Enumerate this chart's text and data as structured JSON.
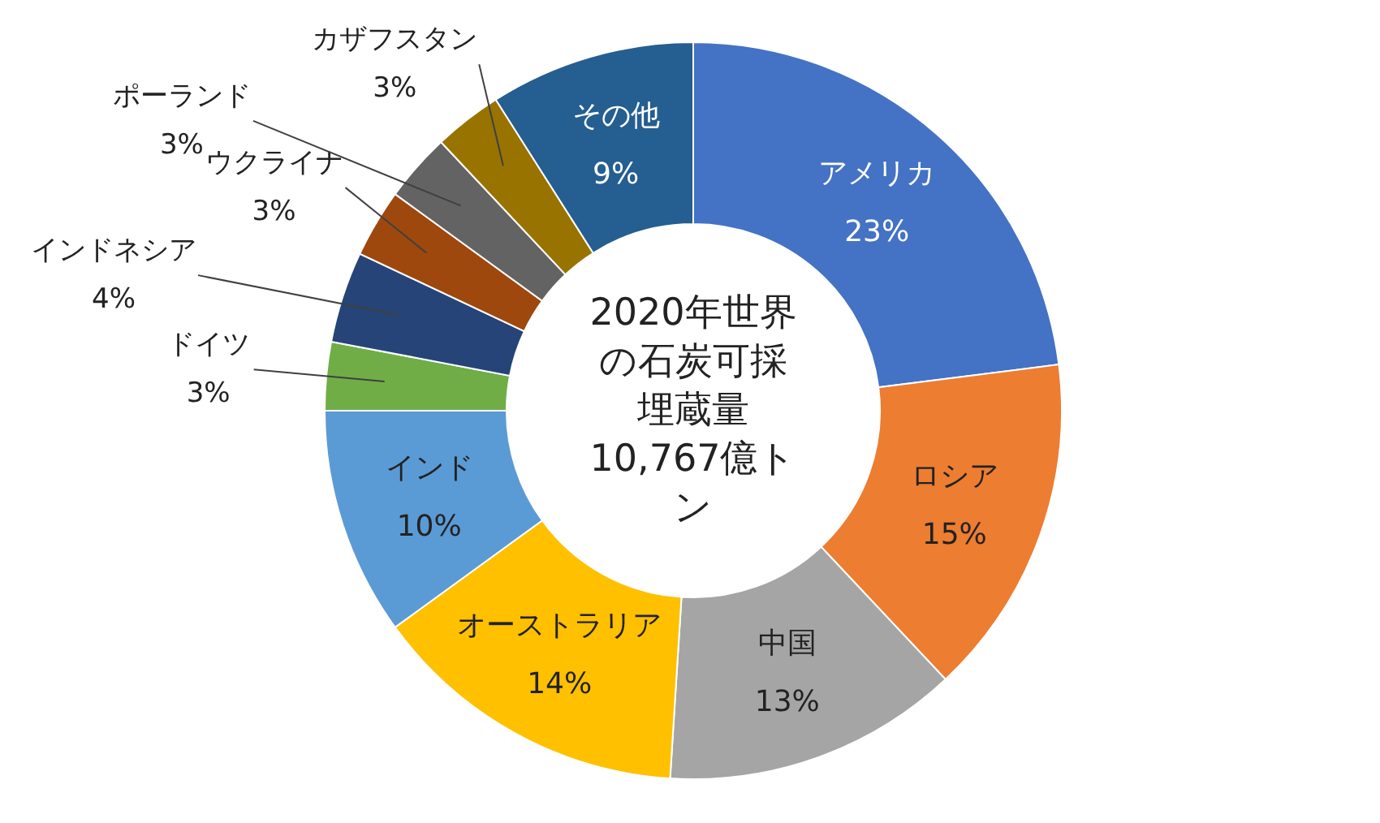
{
  "chart_data": {
    "type": "donut",
    "title": "2020年世界の石炭可採埋蔵量10,767億トン",
    "categories": [
      "アメリカ",
      "ロシア",
      "中国",
      "オーストラリア",
      "インド",
      "ドイツ",
      "インドネシア",
      "ウクライナ",
      "ポーランド",
      "カザフスタン",
      "その他"
    ],
    "values": [
      23,
      15,
      13,
      14,
      10,
      3,
      4,
      3,
      3,
      3,
      9
    ],
    "value_labels": [
      "23%",
      "15%",
      "13%",
      "14%",
      "10%",
      "3%",
      "4%",
      "3%",
      "3%",
      "3%",
      "9%"
    ],
    "colors": [
      "#4472c4",
      "#ed7d31",
      "#a5a5a5",
      "#ffc000",
      "#5b9bd5",
      "#70ad47",
      "#264478",
      "#9e480e",
      "#636363",
      "#997300",
      "#255e91"
    ],
    "data_labels": true
  }
}
